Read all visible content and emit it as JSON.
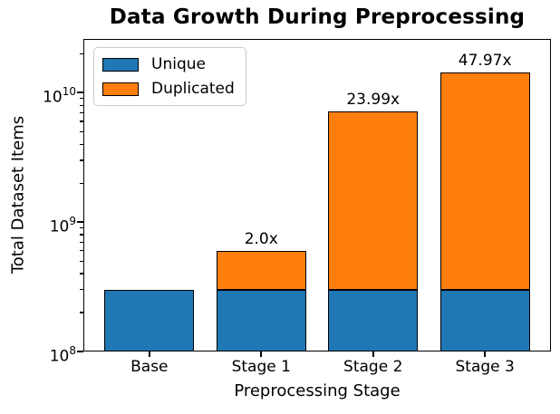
{
  "chart_data": {
    "type": "bar",
    "stacked": true,
    "title": "Data Growth During Preprocessing",
    "xlabel": "Preprocessing Stage",
    "ylabel": "Total Dataset Items",
    "categories": [
      "Base",
      "Stage 1",
      "Stage 2",
      "Stage 3"
    ],
    "series": [
      {
        "name": "Unique",
        "color": "#1f77b4",
        "values": [
          300000000,
          300000000,
          300000000,
          300000000
        ]
      },
      {
        "name": "Duplicated",
        "color": "#ff7f0e",
        "values": [
          0,
          300000000,
          6897000000,
          14091000000
        ]
      }
    ],
    "totals": [
      300000000,
      600000000,
      7197000000,
      14391000000
    ],
    "bar_annotations": [
      "",
      "2.0x",
      "23.99x",
      "47.97x"
    ],
    "y_scale": "log",
    "ylim": [
      100000000,
      26000000000
    ],
    "xlim": [
      -0.59,
      3.59
    ],
    "bar_width": 0.8,
    "ytick_exponents": [
      8,
      9,
      10
    ],
    "ytick_labels": [
      "10^8",
      "10^9",
      "10^10"
    ],
    "grid": false,
    "edge_color": "#000000",
    "legend": {
      "position": "upper left",
      "entries": [
        "Unique",
        "Duplicated"
      ]
    }
  }
}
